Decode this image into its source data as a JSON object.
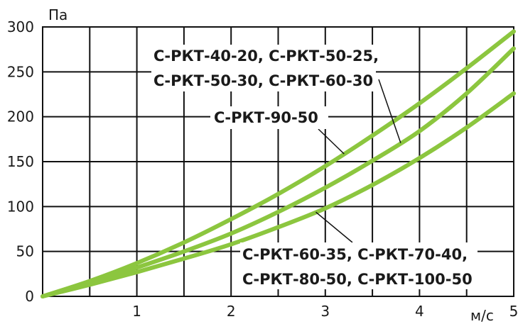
{
  "chart_data": {
    "type": "line",
    "xlabel": "м/с",
    "ylabel": "Па",
    "xlim": [
      0,
      5
    ],
    "ylim": [
      0,
      300
    ],
    "x_ticks": [
      "1",
      "2",
      "3",
      "4",
      "5"
    ],
    "y_ticks": [
      "0",
      "50",
      "100",
      "150",
      "200",
      "250",
      "300"
    ],
    "grid": true,
    "line_color": "#8cc63f",
    "series": [
      {
        "name": "С-РКТ-90-50",
        "x": [
          0,
          0.5,
          1,
          1.5,
          2,
          2.5,
          3,
          3.5,
          4,
          4.5,
          5
        ],
        "values": [
          0,
          17,
          37,
          60,
          86,
          114,
          145,
          179,
          215,
          254,
          295
        ]
      },
      {
        "name": "С-РКТ-40-20, С-РКТ-50-25, С-РКТ-50-30, С-РКТ-60-30",
        "x": [
          0,
          0.5,
          1,
          1.5,
          2,
          2.5,
          3,
          3.5,
          4,
          4.5,
          5
        ],
        "values": [
          0,
          15,
          32,
          50,
          70,
          94,
          121,
          151,
          184,
          226,
          276
        ]
      },
      {
        "name": "С-РКТ-60-35, С-РКТ-70-40, С-РКТ-80-50, С-РКТ-100-50",
        "x": [
          0,
          0.5,
          1,
          1.5,
          2,
          2.5,
          3,
          3.5,
          4,
          4.5,
          5
        ],
        "values": [
          0,
          13,
          27,
          42,
          58,
          77,
          98,
          124,
          154,
          188,
          226
        ]
      }
    ],
    "annotations": {
      "top_line1": "С-РКТ-40-20, С-РКТ-50-25,",
      "top_line2": "С-РКТ-50-30, С-РКТ-60-30",
      "middle": "С-РКТ-90-50",
      "bottom_line1": "С-РКТ-60-35, С-РКТ-70-40,",
      "bottom_line2": "С-РКТ-80-50, С-РКТ-100-50"
    }
  }
}
